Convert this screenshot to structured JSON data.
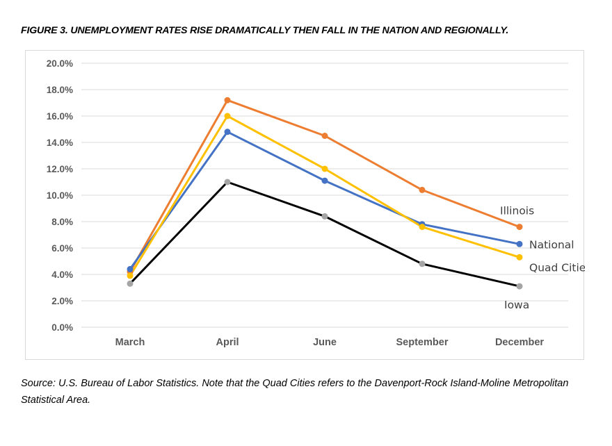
{
  "figure": {
    "title": "FIGURE 3. UNEMPLOYMENT RATES RISE DRAMATICALLY THEN FALL IN THE NATION AND REGIONALLY.",
    "source_note": "Source: U.S. Bureau of Labor Statistics. Note that the Quad Cities refers to the Davenport-Rock Island-Moline Metropolitan Statistical Area."
  },
  "chart_data": {
    "type": "line",
    "title": "",
    "xlabel": "",
    "ylabel": "",
    "categories": [
      "March",
      "April",
      "June",
      "September",
      "December"
    ],
    "ylim": [
      0,
      20
    ],
    "yticks": [
      "0.0%",
      "2.0%",
      "4.0%",
      "6.0%",
      "8.0%",
      "10.0%",
      "12.0%",
      "14.0%",
      "16.0%",
      "18.0%",
      "20.0%"
    ],
    "grid": true,
    "legend": "inline labels at line ends",
    "series": [
      {
        "name": "Illinois",
        "values": [
          4.2,
          17.2,
          14.5,
          10.4,
          7.6
        ],
        "color": "#ed7d31",
        "marker_color": "#ed7d31"
      },
      {
        "name": "National",
        "values": [
          4.4,
          14.8,
          11.1,
          7.8,
          6.3
        ],
        "color": "#4472c4",
        "marker_color": "#4472c4"
      },
      {
        "name": "Quad Cities",
        "values": [
          3.9,
          16.0,
          12.0,
          7.6,
          5.3
        ],
        "color": "#ffc000",
        "marker_color": "#ffc000"
      },
      {
        "name": "Iowa",
        "values": [
          3.3,
          11.0,
          8.4,
          4.8,
          3.1
        ],
        "color": "#000000",
        "marker_color": "#a5a5a5"
      }
    ]
  }
}
